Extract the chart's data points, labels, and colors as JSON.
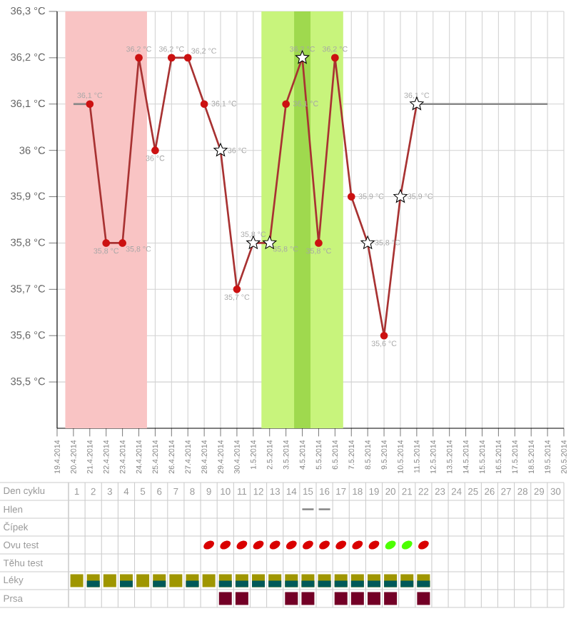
{
  "chart_data": {
    "type": "line",
    "x": [
      "2014-04-21",
      "2014-04-22",
      "2014-04-23",
      "2014-04-24",
      "2014-04-25",
      "2014-04-26",
      "2014-04-27",
      "2014-04-28",
      "2014-04-29",
      "2014-04-30",
      "2014-05-01",
      "2014-05-02",
      "2014-05-03",
      "2014-05-04",
      "2014-05-05",
      "2014-05-06",
      "2014-05-07",
      "2014-05-08",
      "2014-05-09",
      "2014-05-10",
      "2014-05-11"
    ],
    "series": [
      {
        "color": "#888888",
        "marker": "none",
        "x": [
          "2014-04-20",
          "2014-04-21"
        ],
        "values": [
          36.1,
          36.1
        ]
      },
      {
        "color": "#888888",
        "marker": "none",
        "x": [
          "2014-05-11",
          "2014-05-19"
        ],
        "values": [
          36.1,
          36.1
        ]
      },
      {
        "color": "#a83232",
        "marker": "none",
        "values": [
          36.1,
          35.8,
          35.8,
          36.2,
          36.0,
          36.2,
          36.2,
          36.1,
          36.0,
          35.7,
          35.8,
          35.8,
          36.1,
          36.2,
          35.8,
          36.2,
          35.9,
          35.8,
          35.6,
          35.9,
          36.1
        ],
        "value_labels": [
          "36,1 °C",
          "35,8 °C",
          "35,8 °C",
          "36,2 °C",
          "36 °C",
          "36,2 °C",
          "36,2 °C",
          "36,1 °C",
          "36 °C",
          "35,7 °C",
          "35,8 °C",
          "35,8 °C",
          "36,1 °C",
          "36,2 °C",
          "35,8 °C",
          "36,2 °C",
          "35,9 °C",
          "35,8 °C",
          "35,6 °C",
          "35,9 °C",
          "36,1 °C"
        ]
      },
      {
        "type": "scatter",
        "color": "#cc1111",
        "marker": "circle",
        "x": [
          "2014-04-21",
          "2014-04-22",
          "2014-04-23",
          "2014-04-24",
          "2014-04-25",
          "2014-04-26",
          "2014-04-27",
          "2014-04-28",
          "2014-04-30",
          "2014-05-03",
          "2014-05-05",
          "2014-05-06",
          "2014-05-07",
          "2014-05-09"
        ],
        "values": [
          36.1,
          35.8,
          35.8,
          36.2,
          36.0,
          36.2,
          36.2,
          36.1,
          35.7,
          36.1,
          35.8,
          36.2,
          35.9,
          35.6
        ]
      },
      {
        "type": "scatter",
        "color": "#ffffff",
        "marker": "star",
        "x": [
          "2014-04-29",
          "2014-05-01",
          "2014-05-02",
          "2014-05-04",
          "2014-05-08",
          "2014-05-10",
          "2014-05-11"
        ],
        "values": [
          36.0,
          35.8,
          35.8,
          36.2,
          35.8,
          35.9,
          36.1
        ]
      }
    ],
    "xlim": [
      "2014-04-19",
      "2014-05-20"
    ],
    "xticks": [
      {
        "value": "2014-04-19",
        "label": "19.4.2014"
      },
      {
        "value": "2014-04-20",
        "label": "20.4.2014"
      },
      {
        "value": "2014-04-21",
        "label": "21.4.2014"
      },
      {
        "value": "2014-04-22",
        "label": "22.4.2014"
      },
      {
        "value": "2014-04-23",
        "label": "23.4.2014"
      },
      {
        "value": "2014-04-24",
        "label": "24.4.2014"
      },
      {
        "value": "2014-04-25",
        "label": "25.4.2014"
      },
      {
        "value": "2014-04-26",
        "label": "26.4.2014"
      },
      {
        "value": "2014-04-27",
        "label": "27.4.2014"
      },
      {
        "value": "2014-04-28",
        "label": "28.4.2014"
      },
      {
        "value": "2014-04-29",
        "label": "29.4.2014"
      },
      {
        "value": "2014-04-30",
        "label": "30.4.2014"
      },
      {
        "value": "2014-05-01",
        "label": "1.5.2014"
      },
      {
        "value": "2014-05-02",
        "label": "2.5.2014"
      },
      {
        "value": "2014-05-03",
        "label": "3.5.2014"
      },
      {
        "value": "2014-05-04",
        "label": "4.5.2014"
      },
      {
        "value": "2014-05-05",
        "label": "5.5.2014"
      },
      {
        "value": "2014-05-06",
        "label": "6.5.2014"
      },
      {
        "value": "2014-05-07",
        "label": "7.5.2014"
      },
      {
        "value": "2014-05-08",
        "label": "8.5.2014"
      },
      {
        "value": "2014-05-09",
        "label": "9.5.2014"
      },
      {
        "value": "2014-05-10",
        "label": "10.5.2014"
      },
      {
        "value": "2014-05-11",
        "label": "11.5.2014"
      },
      {
        "value": "2014-05-12",
        "label": "12.5.2014"
      },
      {
        "value": "2014-05-13",
        "label": "13.5.2014"
      },
      {
        "value": "2014-05-14",
        "label": "14.5.2014"
      },
      {
        "value": "2014-05-15",
        "label": "15.5.2014"
      },
      {
        "value": "2014-05-16",
        "label": "16.5.2014"
      },
      {
        "value": "2014-05-17",
        "label": "17.5.2014"
      },
      {
        "value": "2014-05-18",
        "label": "18.5.2014"
      },
      {
        "value": "2014-05-19",
        "label": "19.5.2014"
      },
      {
        "value": "2014-05-20",
        "label": "20.5.2014"
      }
    ],
    "ylim": [
      35.4,
      36.3
    ],
    "yticks": [
      {
        "value": 35.5,
        "label": "35,5 °C"
      },
      {
        "value": 35.6,
        "label": "35,6 °C"
      },
      {
        "value": 35.7,
        "label": "35,7 °C"
      },
      {
        "value": 35.8,
        "label": "35,8 °C"
      },
      {
        "value": 35.9,
        "label": "35,9 °C"
      },
      {
        "value": 36.0,
        "label": "36 °C"
      },
      {
        "value": 36.1,
        "label": "36,1 °C"
      },
      {
        "value": 36.2,
        "label": "36,2 °C"
      },
      {
        "value": 36.3,
        "label": "36,3 °C"
      }
    ],
    "grid": true,
    "bands": [
      {
        "axis": "x",
        "from": "2014-04-19T12:00",
        "to": "2014-04-24T12:00",
        "color": "#f9c4c4"
      },
      {
        "axis": "x",
        "from": "2014-05-01T12:00",
        "to": "2014-05-06T12:00",
        "color": "#c8f47c"
      },
      {
        "axis": "x",
        "from": "2014-05-03T12:00",
        "to": "2014-05-04T12:00",
        "color": "#9fd94e"
      }
    ],
    "annotations": [
      "Den cyklu",
      "Hlen",
      "Čípek",
      "Ovu test",
      "Těhu test",
      "Léky",
      "Prsa",
      "1",
      "2",
      "3",
      "4",
      "5",
      "6",
      "7",
      "8",
      "9",
      "10",
      "11",
      "12",
      "13",
      "14",
      "15",
      "16",
      "17",
      "18",
      "19",
      "20",
      "21",
      "22",
      "23",
      "24",
      "25",
      "26",
      "27",
      "28",
      "29",
      "30"
    ]
  }
}
